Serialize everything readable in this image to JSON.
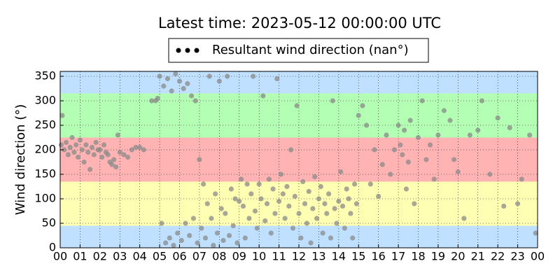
{
  "chart_data": {
    "type": "scatter",
    "title": "Latest time: 2023-05-12 00:00:00 UTC",
    "y_label": "Wind direction (°)",
    "xlim": [
      0,
      24
    ],
    "ylim": [
      0,
      360
    ],
    "xticks": [
      {
        "value": 0,
        "label": "00"
      },
      {
        "value": 1,
        "label": "01"
      },
      {
        "value": 2,
        "label": "02"
      },
      {
        "value": 3,
        "label": "03"
      },
      {
        "value": 4,
        "label": "04"
      },
      {
        "value": 5,
        "label": "05"
      },
      {
        "value": 6,
        "label": "06"
      },
      {
        "value": 7,
        "label": "07"
      },
      {
        "value": 8,
        "label": "08"
      },
      {
        "value": 9,
        "label": "09"
      },
      {
        "value": 10,
        "label": "10"
      },
      {
        "value": 11,
        "label": "11"
      },
      {
        "value": 12,
        "label": "12"
      },
      {
        "value": 13,
        "label": "13"
      },
      {
        "value": 14,
        "label": "14"
      },
      {
        "value": 15,
        "label": "15"
      },
      {
        "value": 16,
        "label": "16"
      },
      {
        "value": 17,
        "label": "17"
      },
      {
        "value": 18,
        "label": "18"
      },
      {
        "value": 19,
        "label": "19"
      },
      {
        "value": 20,
        "label": "20"
      },
      {
        "value": 21,
        "label": "21"
      },
      {
        "value": 22,
        "label": "22"
      },
      {
        "value": 23,
        "label": "23"
      },
      {
        "value": 24,
        "label": "00"
      }
    ],
    "yticks": [
      0,
      50,
      100,
      150,
      200,
      250,
      300,
      350
    ],
    "grid": true,
    "bands": [
      {
        "from": 0,
        "to": 45,
        "color": "#bfe0ff"
      },
      {
        "from": 45,
        "to": 135,
        "color": "#ffffb3"
      },
      {
        "from": 135,
        "to": 225,
        "color": "#ffb3b3"
      },
      {
        "from": 225,
        "to": 315,
        "color": "#b3ffb3"
      },
      {
        "from": 315,
        "to": 360,
        "color": "#bfe0ff"
      }
    ],
    "series": [
      {
        "name": "Resultant wind direction (nan°)",
        "color": "#8a8a8a",
        "x": [
          0.05,
          0.1,
          0.2,
          0.3,
          0.4,
          0.5,
          0.6,
          0.7,
          0.8,
          0.9,
          1.0,
          1.1,
          1.2,
          1.3,
          1.4,
          1.5,
          1.6,
          1.7,
          1.8,
          1.9,
          2.0,
          2.1,
          2.2,
          2.3,
          2.4,
          2.5,
          2.6,
          2.7,
          2.8,
          2.9,
          3.0,
          3.2,
          3.4,
          3.6,
          3.8,
          4.0,
          4.2,
          4.6,
          4.8,
          4.9,
          5.0,
          5.1,
          5.2,
          5.3,
          5.4,
          5.5,
          5.6,
          5.7,
          5.8,
          5.9,
          6.0,
          6.1,
          6.2,
          6.3,
          6.4,
          6.5,
          6.6,
          6.7,
          6.8,
          6.9,
          7.0,
          7.1,
          7.2,
          7.3,
          7.4,
          7.5,
          7.6,
          7.7,
          7.8,
          7.9,
          8.0,
          8.1,
          8.2,
          8.3,
          8.4,
          8.5,
          8.6,
          8.7,
          8.8,
          8.9,
          9.0,
          9.1,
          9.2,
          9.3,
          9.4,
          9.5,
          9.6,
          9.7,
          9.8,
          9.9,
          10.0,
          10.1,
          10.2,
          10.3,
          10.4,
          10.5,
          10.6,
          10.7,
          10.8,
          10.9,
          11.0,
          11.1,
          11.2,
          11.3,
          11.4,
          11.5,
          11.6,
          11.7,
          11.8,
          11.9,
          12.0,
          12.1,
          12.2,
          12.3,
          12.4,
          12.5,
          12.6,
          12.7,
          12.8,
          12.9,
          13.0,
          13.1,
          13.2,
          13.3,
          13.4,
          13.5,
          13.6,
          13.7,
          13.8,
          13.9,
          14.0,
          14.1,
          14.2,
          14.3,
          14.4,
          14.5,
          14.6,
          14.7,
          14.8,
          14.9,
          15.0,
          15.2,
          15.4,
          15.6,
          15.8,
          16.0,
          16.2,
          16.4,
          16.6,
          16.8,
          17.0,
          17.1,
          17.2,
          17.3,
          17.4,
          17.5,
          17.6,
          17.8,
          18.0,
          18.2,
          18.4,
          18.6,
          18.8,
          19.0,
          19.3,
          19.6,
          19.8,
          20.0,
          20.3,
          20.6,
          21.0,
          21.2,
          21.6,
          22.0,
          22.3,
          22.6,
          23.0,
          23.2,
          23.6,
          23.9
        ],
        "values": [
          210,
          270,
          200,
          215,
          190,
          205,
          225,
          195,
          210,
          185,
          220,
          200,
          175,
          210,
          195,
          160,
          205,
          190,
          215,
          200,
          200,
          185,
          210,
          195,
          190,
          175,
          170,
          180,
          165,
          230,
          195,
          190,
          185,
          200,
          205,
          205,
          200,
          300,
          300,
          305,
          350,
          50,
          330,
          10,
          345,
          20,
          320,
          5,
          355,
          30,
          340,
          15,
          325,
          50,
          335,
          25,
          310,
          60,
          300,
          10,
          180,
          40,
          130,
          20,
          90,
          350,
          60,
          5,
          110,
          30,
          340,
          80,
          15,
          70,
          350,
          25,
          120,
          45,
          100,
          10,
          95,
          140,
          85,
          20,
          130,
          60,
          110,
          350,
          75,
          40,
          130,
          100,
          310,
          55,
          90,
          140,
          30,
          120,
          70,
          345,
          95,
          150,
          110,
          60,
          125,
          85,
          200,
          40,
          105,
          290,
          70,
          20,
          135,
          90,
          50,
          115,
          10,
          80,
          145,
          60,
          100,
          125,
          30,
          90,
          70,
          110,
          20,
          300,
          80,
          50,
          95,
          155,
          85,
          40,
          120,
          100,
          70,
          20,
          130,
          90,
          270,
          290,
          250,
          130,
          200,
          105,
          170,
          230,
          150,
          200,
          250,
          210,
          190,
          240,
          120,
          175,
          260,
          90,
          225,
          300,
          180,
          210,
          140,
          230,
          280,
          260,
          180,
          155,
          60,
          230,
          240,
          300,
          150,
          265,
          85,
          245,
          90,
          140,
          230,
          30
        ]
      }
    ]
  }
}
